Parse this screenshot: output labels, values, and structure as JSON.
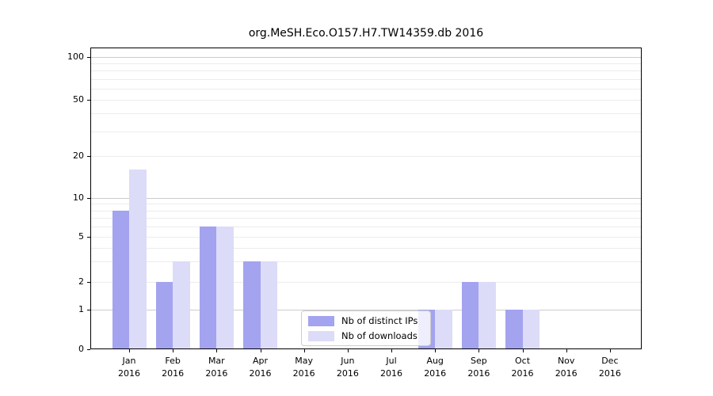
{
  "title": "org.MeSH.Eco.O157.H7.TW14359.db 2016",
  "legend": {
    "items": [
      {
        "label": "Nb of distinct IPs",
        "color": "#a3a3f0"
      },
      {
        "label": "Nb of downloads",
        "color": "#dcdcf8"
      }
    ]
  },
  "y_axis": {
    "tick_labels": [
      "0",
      "1",
      "2",
      "5",
      "10",
      "20",
      "50",
      "100"
    ]
  },
  "x_axis": {
    "months": [
      "Jan",
      "Feb",
      "Mar",
      "Apr",
      "May",
      "Jun",
      "Jul",
      "Aug",
      "Sep",
      "Oct",
      "Nov",
      "Dec"
    ],
    "year": "2016"
  },
  "chart_data": {
    "type": "bar",
    "title": "org.MeSH.Eco.O157.H7.TW14359.db 2016",
    "categories": [
      "Jan 2016",
      "Feb 2016",
      "Mar 2016",
      "Apr 2016",
      "May 2016",
      "Jun 2016",
      "Jul 2016",
      "Aug 2016",
      "Sep 2016",
      "Oct 2016",
      "Nov 2016",
      "Dec 2016"
    ],
    "series": [
      {
        "name": "Nb of distinct IPs",
        "color": "#a3a3f0",
        "values": [
          8,
          2,
          6,
          3,
          0,
          0,
          0,
          1,
          2,
          1,
          0,
          0
        ]
      },
      {
        "name": "Nb of downloads",
        "color": "#dcdcf8",
        "values": [
          16,
          3,
          6,
          3,
          0,
          0,
          0,
          1,
          2,
          1,
          0,
          0
        ]
      }
    ],
    "xlabel": "",
    "ylabel": "",
    "yticks": [
      0,
      1,
      2,
      5,
      10,
      20,
      50,
      100
    ],
    "ylim": [
      0,
      117
    ],
    "yscale": "log-like (linear segment 0–1, logarithmic above 1)",
    "grid": "horizontal minor+major log gridlines",
    "legend_position": "inside lower-center"
  }
}
